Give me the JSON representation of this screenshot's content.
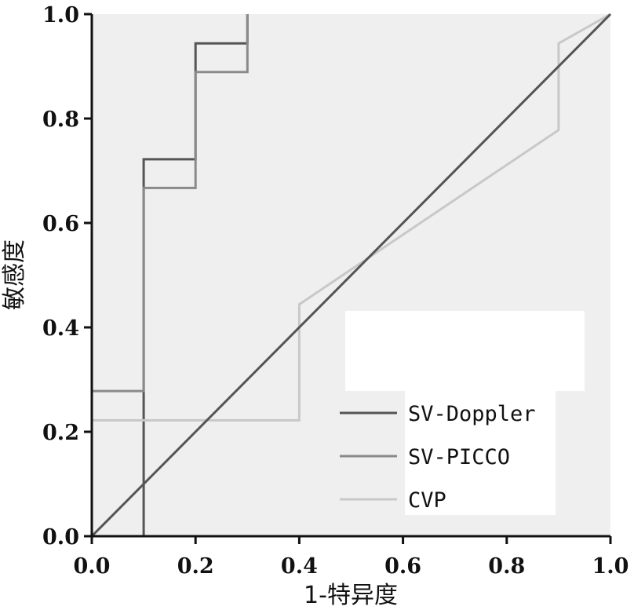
{
  "chart_data": {
    "type": "line",
    "xlabel": "1-特异度",
    "ylabel": "敏感度",
    "xlim": [
      0,
      1
    ],
    "ylim": [
      0,
      1
    ],
    "x_ticks": [
      "0.0",
      "0.2",
      "0.4",
      "0.6",
      "0.8",
      "1.0"
    ],
    "y_ticks": [
      "0.0",
      "0.2",
      "0.4",
      "0.6",
      "0.8",
      "1.0"
    ],
    "grid": false,
    "legend_position": "bottom-right",
    "series": [
      {
        "name": "SV-Doppler",
        "color": "#555555",
        "points": [
          [
            0.1,
            0.0
          ],
          [
            0.1,
            0.722
          ],
          [
            0.2,
            0.722
          ],
          [
            0.2,
            0.944
          ],
          [
            0.3,
            0.944
          ],
          [
            0.3,
            1.0
          ]
        ]
      },
      {
        "name": "SV-PICCO",
        "color": "#8a8a8a",
        "points": [
          [
            0.0,
            0.278
          ],
          [
            0.1,
            0.278
          ],
          [
            0.1,
            0.667
          ],
          [
            0.2,
            0.667
          ],
          [
            0.2,
            0.889
          ],
          [
            0.3,
            0.889
          ],
          [
            0.3,
            1.0
          ]
        ]
      },
      {
        "name": "CVP",
        "color": "#c8c8c8",
        "points": [
          [
            0.0,
            0.222
          ],
          [
            0.4,
            0.222
          ],
          [
            0.4,
            0.444
          ],
          [
            0.9,
            0.778
          ],
          [
            0.9,
            0.944
          ],
          [
            1.0,
            1.0
          ]
        ]
      }
    ],
    "reference_line": {
      "color": "#555555",
      "points": [
        [
          0,
          0
        ],
        [
          1,
          1
        ]
      ]
    },
    "colors": {
      "plot_background": "#efefef",
      "page_background": "#ffffff",
      "axis": "#111111"
    }
  }
}
